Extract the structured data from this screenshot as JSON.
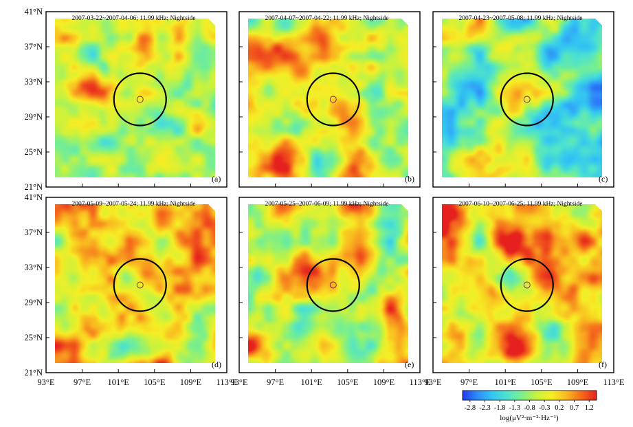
{
  "figure": {
    "lat_ticks": [
      "41°N",
      "37°N",
      "33°N",
      "29°N",
      "25°N",
      "21°N"
    ],
    "lon_ticks": [
      "93°E",
      "97°E",
      "101°E",
      "105°E",
      "109°E",
      "113°E"
    ],
    "lat_values": [
      41,
      37,
      33,
      29,
      25,
      21
    ],
    "lon_values": [
      93,
      97,
      101,
      105,
      109,
      113
    ],
    "lat_range": [
      21,
      41
    ],
    "lon_range": [
      93,
      113
    ],
    "epicenter": {
      "lon": 103.4,
      "lat": 31.0
    },
    "panels": [
      {
        "letter": "(a)",
        "title": "2007-03-22~2007-04-06; 11.99 kHz; Nightside",
        "seed": 11,
        "bias": -0.35
      },
      {
        "letter": "(b)",
        "title": "2007-04-07~2007-04-22; 11.99 kHz; Nightside",
        "seed": 23,
        "bias": 0.05
      },
      {
        "letter": "(c)",
        "title": "2007-04-23~2007-05-08; 11.99 kHz; Nightside",
        "seed": 37,
        "bias": -0.7
      },
      {
        "letter": "(d)",
        "title": "2007-05-09~2007-05-24; 11.99 kHz; Nightside",
        "seed": 41,
        "bias": 0.3
      },
      {
        "letter": "(e)",
        "title": "2007-05-25~2007-06-09; 11.99 kHz; Nightside",
        "seed": 53,
        "bias": 0.15
      },
      {
        "letter": "(f)",
        "title": "2007-06-10~2007-06-25; 11.99 kHz; Nightside",
        "seed": 67,
        "bias": 0.35
      }
    ],
    "colorbar": {
      "ticks": [
        "-2.8",
        "-2.3",
        "-1.8",
        "-1.3",
        "-0.8",
        "-0.3",
        "0.2",
        "0.7",
        "1.2"
      ],
      "range": [
        -3.05,
        1.45
      ],
      "label": "log(μV²·m⁻²·Hz⁻¹)",
      "colors": [
        "#1d3cf0",
        "#2f8cf8",
        "#33c6f2",
        "#4fe3cc",
        "#7cf08a",
        "#c9f23d",
        "#f6ee25",
        "#f9b820",
        "#f46a1c",
        "#e5201e"
      ]
    }
  }
}
